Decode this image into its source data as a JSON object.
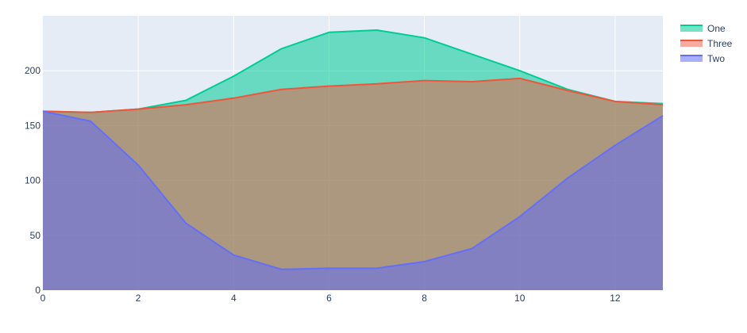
{
  "chart_data": {
    "type": "area",
    "x": [
      0,
      1,
      2,
      3,
      4,
      5,
      6,
      7,
      8,
      9,
      10,
      11,
      12,
      13
    ],
    "series": [
      {
        "name": "One",
        "values": [
          163,
          162,
          165,
          173,
          195,
          220,
          235,
          237,
          230,
          215,
          200,
          183,
          172,
          170
        ],
        "line_color": "#00cc96",
        "fill_color": "rgba(0,204,150,0.55)"
      },
      {
        "name": "Three",
        "values": [
          163,
          162,
          165,
          169,
          175,
          183,
          186,
          188,
          191,
          190,
          193,
          182,
          172,
          169
        ],
        "line_color": "#ef553b",
        "fill_color": "rgba(239,85,59,0.5)"
      },
      {
        "name": "Two",
        "values": [
          163,
          154,
          114,
          61,
          32,
          19,
          20,
          20,
          26,
          38,
          67,
          102,
          132,
          159
        ],
        "line_color": "#636efa",
        "fill_color": "rgba(99,110,250,0.55)"
      }
    ],
    "xlim": [
      0,
      13
    ],
    "ylim": [
      0,
      250
    ],
    "x_ticks": [
      "0",
      "2",
      "4",
      "6",
      "8",
      "10",
      "12"
    ],
    "y_ticks": [
      "0",
      "50",
      "100",
      "150",
      "200"
    ],
    "grid": true,
    "legend_position": "top-right",
    "plot_background": "#e5ecf6",
    "grid_color": "#ffffff"
  }
}
